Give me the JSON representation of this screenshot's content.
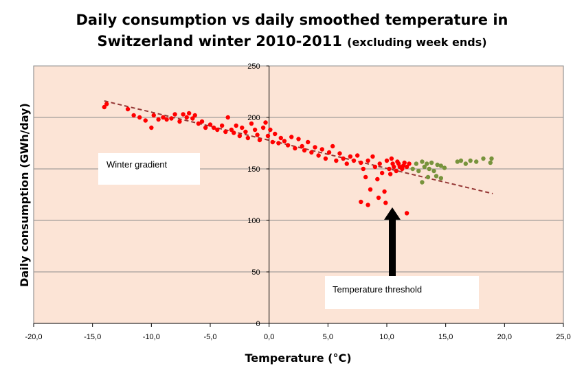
{
  "chart_data": {
    "type": "scatter",
    "title_line1": "Daily consumption vs daily smoothed temperature in",
    "title_line2_main": "Switzerland winter 2010-2011",
    "title_line2_small": "(excluding week ends)",
    "xlabel": "Temperature (°C)",
    "ylabel": "Daily consumption (GWh/day)",
    "xlim": [
      -20,
      25
    ],
    "ylim": [
      0,
      250
    ],
    "x_ticks": [
      -20,
      -15,
      -10,
      -5,
      0,
      5,
      10,
      15,
      20,
      25
    ],
    "x_tick_labels": [
      "-20,0",
      "-15,0",
      "-10,0",
      "-5,0",
      "0,0",
      "5,0",
      "10,0",
      "15,0",
      "20,0",
      "25,0"
    ],
    "y_ticks": [
      0,
      50,
      100,
      150,
      200,
      250
    ],
    "y_tick_labels": [
      "0",
      "50",
      "100",
      "150",
      "200",
      "250"
    ],
    "grid": "horizontal",
    "colors": {
      "plot_bg": "#FCE4D6",
      "red": "#FF0000",
      "green": "#77933C",
      "trend": "#953735"
    },
    "series": [
      {
        "color": "#FF0000",
        "points": [
          [
            -14.0,
            210
          ],
          [
            -13.8,
            213
          ],
          [
            -12.0,
            208
          ],
          [
            -11.5,
            202
          ],
          [
            -11.0,
            200
          ],
          [
            -10.5,
            197
          ],
          [
            -10.0,
            190
          ],
          [
            -9.8,
            202
          ],
          [
            -9.4,
            198
          ],
          [
            -9.0,
            200
          ],
          [
            -8.7,
            198
          ],
          [
            -8.3,
            199
          ],
          [
            -8.0,
            203
          ],
          [
            -7.6,
            196
          ],
          [
            -7.3,
            203
          ],
          [
            -7.0,
            200
          ],
          [
            -6.8,
            204
          ],
          [
            -6.5,
            199
          ],
          [
            -6.3,
            202
          ],
          [
            -6.0,
            194
          ],
          [
            -5.7,
            196
          ],
          [
            -5.4,
            190
          ],
          [
            -5.0,
            193
          ],
          [
            -4.7,
            190
          ],
          [
            -4.4,
            188
          ],
          [
            -4.0,
            192
          ],
          [
            -3.7,
            186
          ],
          [
            -3.5,
            200
          ],
          [
            -3.2,
            188
          ],
          [
            -3.0,
            185
          ],
          [
            -2.8,
            192
          ],
          [
            -2.5,
            182
          ],
          [
            -2.3,
            190
          ],
          [
            -2.0,
            186
          ],
          [
            -1.8,
            180
          ],
          [
            -1.5,
            194
          ],
          [
            -1.2,
            188
          ],
          [
            -1.0,
            183
          ],
          [
            -0.8,
            178
          ],
          [
            -0.5,
            190
          ],
          [
            -0.3,
            195
          ],
          [
            -0.1,
            182
          ],
          [
            0.1,
            188
          ],
          [
            0.3,
            176
          ],
          [
            0.5,
            184
          ],
          [
            0.8,
            175
          ],
          [
            1.0,
            180
          ],
          [
            1.3,
            177
          ],
          [
            1.6,
            173
          ],
          [
            1.9,
            181
          ],
          [
            2.2,
            170
          ],
          [
            2.5,
            179
          ],
          [
            2.8,
            172
          ],
          [
            3.0,
            168
          ],
          [
            3.3,
            176
          ],
          [
            3.6,
            166
          ],
          [
            3.9,
            171
          ],
          [
            4.2,
            163
          ],
          [
            4.5,
            169
          ],
          [
            4.8,
            160
          ],
          [
            5.1,
            166
          ],
          [
            5.4,
            172
          ],
          [
            5.7,
            158
          ],
          [
            6.0,
            165
          ],
          [
            6.3,
            160
          ],
          [
            6.6,
            155
          ],
          [
            6.9,
            162
          ],
          [
            7.2,
            158
          ],
          [
            7.5,
            163
          ],
          [
            7.8,
            156
          ],
          [
            8.0,
            150
          ],
          [
            8.2,
            142
          ],
          [
            8.4,
            158
          ],
          [
            8.6,
            130
          ],
          [
            8.8,
            162
          ],
          [
            9.0,
            152
          ],
          [
            9.2,
            140
          ],
          [
            9.4,
            155
          ],
          [
            9.6,
            146
          ],
          [
            9.8,
            128
          ],
          [
            10.0,
            158
          ],
          [
            10.2,
            150
          ],
          [
            10.3,
            145
          ],
          [
            10.5,
            155
          ],
          [
            10.6,
            152
          ],
          [
            10.8,
            148
          ],
          [
            11.0,
            155
          ],
          [
            11.1,
            152
          ],
          [
            11.3,
            150
          ],
          [
            11.5,
            156
          ],
          [
            11.7,
            152
          ],
          [
            11.9,
            155
          ],
          [
            10.4,
            160
          ],
          [
            10.9,
            157
          ],
          [
            11.4,
            153
          ],
          [
            7.8,
            118
          ],
          [
            8.4,
            115
          ],
          [
            9.3,
            122
          ],
          [
            9.9,
            117
          ],
          [
            11.7,
            107
          ]
        ]
      },
      {
        "color": "#77933C",
        "points": [
          [
            12.2,
            150
          ],
          [
            12.5,
            155
          ],
          [
            12.7,
            148
          ],
          [
            13.0,
            157
          ],
          [
            13.2,
            152
          ],
          [
            13.4,
            155
          ],
          [
            13.6,
            150
          ],
          [
            13.8,
            156
          ],
          [
            14.0,
            148
          ],
          [
            14.3,
            154
          ],
          [
            14.6,
            153
          ],
          [
            14.9,
            151
          ],
          [
            13.0,
            137
          ],
          [
            13.5,
            142
          ],
          [
            14.2,
            143
          ],
          [
            14.6,
            141
          ],
          [
            16.0,
            157
          ],
          [
            16.3,
            158
          ],
          [
            16.7,
            155
          ],
          [
            17.1,
            158
          ],
          [
            17.6,
            157
          ],
          [
            18.2,
            160
          ],
          [
            18.8,
            156
          ],
          [
            18.9,
            160
          ]
        ]
      }
    ],
    "trendline": {
      "x": [
        -14.0,
        19.0
      ],
      "y": [
        216,
        126
      ]
    },
    "annotations": {
      "winter_gradient": "Winter gradient",
      "temperature_threshold": "Temperature  threshold"
    }
  }
}
